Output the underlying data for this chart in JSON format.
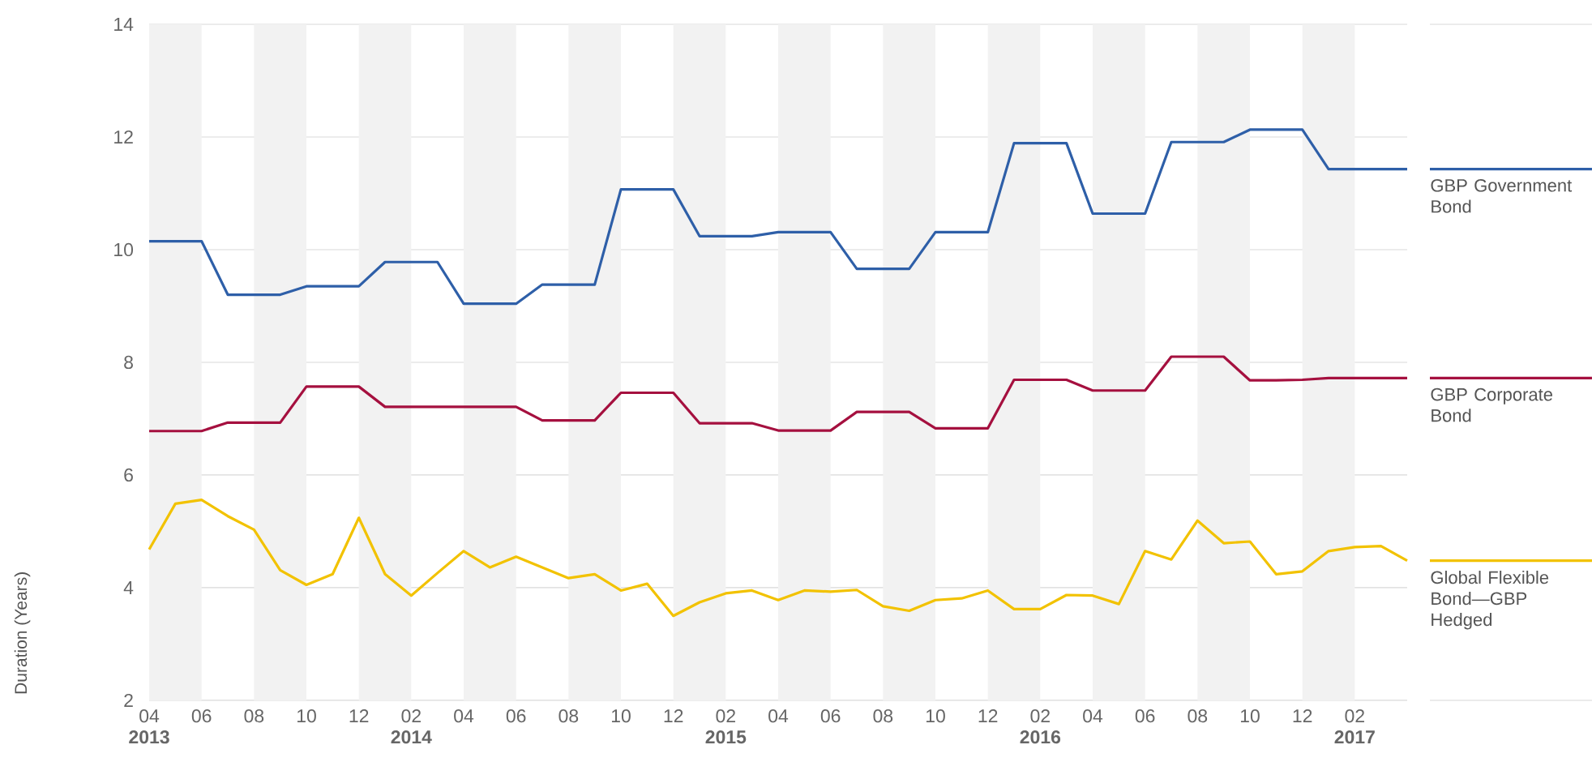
{
  "chart_data": {
    "type": "line",
    "ylabel": "Duration (Years)",
    "x": [
      "2013-04",
      "2013-05",
      "2013-06",
      "2013-07",
      "2013-08",
      "2013-09",
      "2013-10",
      "2013-11",
      "2013-12",
      "2014-01",
      "2014-02",
      "2014-03",
      "2014-04",
      "2014-05",
      "2014-06",
      "2014-07",
      "2014-08",
      "2014-09",
      "2014-10",
      "2014-11",
      "2014-12",
      "2015-01",
      "2015-02",
      "2015-03",
      "2015-04",
      "2015-05",
      "2015-06",
      "2015-07",
      "2015-08",
      "2015-09",
      "2015-10",
      "2015-11",
      "2015-12",
      "2016-01",
      "2016-02",
      "2016-03",
      "2016-04",
      "2016-05",
      "2016-06",
      "2016-07",
      "2016-08",
      "2016-09",
      "2016-10",
      "2016-11",
      "2016-12",
      "2017-01",
      "2017-02",
      "2017-03",
      "2017-04"
    ],
    "series": [
      {
        "name": "GBP Government Bond",
        "color": "#2e5fa8",
        "values": [
          10.15,
          10.15,
          10.15,
          9.2,
          9.2,
          9.2,
          9.35,
          9.35,
          9.35,
          9.78,
          9.78,
          9.78,
          9.04,
          9.04,
          9.04,
          9.38,
          9.38,
          9.38,
          11.07,
          11.07,
          11.07,
          10.24,
          10.24,
          10.24,
          10.31,
          10.31,
          10.31,
          9.66,
          9.66,
          9.66,
          10.31,
          10.31,
          10.31,
          11.89,
          11.89,
          11.89,
          10.64,
          10.64,
          10.64,
          11.91,
          11.91,
          11.91,
          12.13,
          12.13,
          12.13,
          11.43,
          11.43,
          11.43,
          11.43
        ]
      },
      {
        "name": "GBP Corporate Bond",
        "color": "#a5103f",
        "values": [
          6.78,
          6.78,
          6.78,
          6.93,
          6.93,
          6.93,
          7.57,
          7.57,
          7.57,
          7.21,
          7.21,
          7.21,
          7.21,
          7.21,
          7.21,
          6.97,
          6.97,
          6.97,
          7.46,
          7.46,
          7.46,
          6.92,
          6.92,
          6.92,
          6.79,
          6.79,
          6.79,
          7.12,
          7.12,
          7.12,
          6.83,
          6.83,
          6.83,
          7.69,
          7.69,
          7.69,
          7.5,
          7.5,
          7.5,
          8.1,
          8.1,
          8.1,
          7.68,
          7.68,
          7.69,
          7.72,
          7.72,
          7.72,
          7.72
        ]
      },
      {
        "name": "Global Flexible Bond—GBP Hedged",
        "color": "#f2c200",
        "values": [
          4.68,
          5.49,
          5.56,
          5.27,
          5.03,
          4.31,
          4.05,
          4.24,
          5.24,
          4.24,
          3.86,
          4.26,
          4.65,
          4.36,
          4.55,
          4.36,
          4.17,
          4.24,
          3.95,
          4.07,
          3.5,
          3.74,
          3.9,
          3.95,
          3.78,
          3.95,
          3.93,
          3.96,
          3.67,
          3.59,
          3.78,
          3.81,
          3.95,
          3.62,
          3.62,
          3.87,
          3.86,
          3.71,
          4.65,
          4.5,
          5.19,
          4.79,
          4.82,
          4.24,
          4.29,
          4.65,
          4.72,
          4.74,
          4.48
        ]
      }
    ],
    "xlim": [
      "2013-04",
      "2017-04"
    ],
    "xticks": [
      {
        "value": "2013-04",
        "label": "04 **2013**"
      },
      {
        "value": "2013-06",
        "label": "06"
      },
      {
        "value": "2013-08",
        "label": "08"
      },
      {
        "value": "2013-10",
        "label": "10"
      },
      {
        "value": "2013-12",
        "label": "12"
      },
      {
        "value": "2014-02",
        "label": "02 **2014**"
      },
      {
        "value": "2014-04",
        "label": "04"
      },
      {
        "value": "2014-06",
        "label": "06"
      },
      {
        "value": "2014-08",
        "label": "08"
      },
      {
        "value": "2014-10",
        "label": "10"
      },
      {
        "value": "2014-12",
        "label": "12"
      },
      {
        "value": "2015-02",
        "label": "02 **2015**"
      },
      {
        "value": "2015-04",
        "label": "04"
      },
      {
        "value": "2015-06",
        "label": "06"
      },
      {
        "value": "2015-08",
        "label": "08"
      },
      {
        "value": "2015-10",
        "label": "10"
      },
      {
        "value": "2015-12",
        "label": "12"
      },
      {
        "value": "2016-02",
        "label": "02 **2016**"
      },
      {
        "value": "2016-04",
        "label": "04"
      },
      {
        "value": "2016-06",
        "label": "06"
      },
      {
        "value": "2016-08",
        "label": "08"
      },
      {
        "value": "2016-10",
        "label": "10"
      },
      {
        "value": "2016-12",
        "label": "12"
      },
      {
        "value": "2017-02",
        "label": "02 **2017**"
      }
    ],
    "ylim": [
      2,
      14
    ],
    "yticks": [
      2,
      4,
      6,
      8,
      10,
      12,
      14
    ],
    "bands": [
      {
        "axis": "x",
        "from": "2013-04",
        "to": "2013-06",
        "color": "#f2f2f2"
      },
      {
        "axis": "x",
        "from": "2013-08",
        "to": "2013-10",
        "color": "#f2f2f2"
      },
      {
        "axis": "x",
        "from": "2013-12",
        "to": "2014-02",
        "color": "#f2f2f2"
      },
      {
        "axis": "x",
        "from": "2014-04",
        "to": "2014-06",
        "color": "#f2f2f2"
      },
      {
        "axis": "x",
        "from": "2014-08",
        "to": "2014-10",
        "color": "#f2f2f2"
      },
      {
        "axis": "x",
        "from": "2014-12",
        "to": "2015-02",
        "color": "#f2f2f2"
      },
      {
        "axis": "x",
        "from": "2015-04",
        "to": "2015-06",
        "color": "#f2f2f2"
      },
      {
        "axis": "x",
        "from": "2015-08",
        "to": "2015-10",
        "color": "#f2f2f2"
      },
      {
        "axis": "x",
        "from": "2015-12",
        "to": "2016-02",
        "color": "#f2f2f2"
      },
      {
        "axis": "x",
        "from": "2016-04",
        "to": "2016-06",
        "color": "#f2f2f2"
      },
      {
        "axis": "x",
        "from": "2016-08",
        "to": "2016-10",
        "color": "#f2f2f2"
      },
      {
        "axis": "x",
        "from": "2016-12",
        "to": "2017-02",
        "color": "#f2f2f2"
      }
    ],
    "grid": "y",
    "legend": "right",
    "marker": "none",
    "line_style": "solid"
  }
}
